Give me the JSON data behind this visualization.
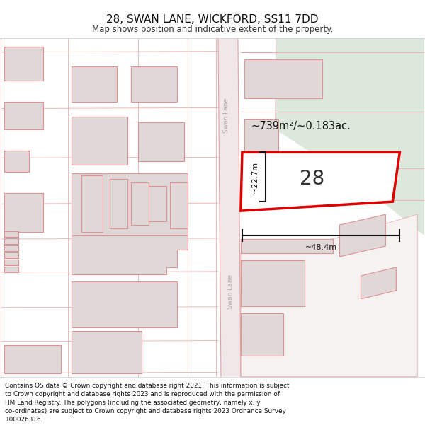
{
  "title": "28, SWAN LANE, WICKFORD, SS11 7DD",
  "subtitle": "Map shows position and indicative extent of the property.",
  "area_label": "~739m²/~0.183ac.",
  "width_label": "~48.4m",
  "height_label": "~22.7m",
  "house_number": "28",
  "map_bg": "#f7f2f2",
  "green_area_color": "#dce8dc",
  "plot_fill": "#f5f0f0",
  "plot_border": "#dd0000",
  "road_line_color": "#e8a0a0",
  "road_fill": "#f0e8e8",
  "building_fill": "#e0d8d8",
  "building_edge": "#e09090",
  "dim_line_color": "#111111",
  "street_label_color": "#b0a8a8",
  "footer_text": "Contains OS data © Crown copyright and database right 2021. This information is subject\nto Crown copyright and database rights 2023 and is reproduced with the permission of\nHM Land Registry. The polygons (including the associated geometry, namely x, y\nco-ordinates) are subject to Crown copyright and database rights 2023 Ordnance Survey\n100026316."
}
